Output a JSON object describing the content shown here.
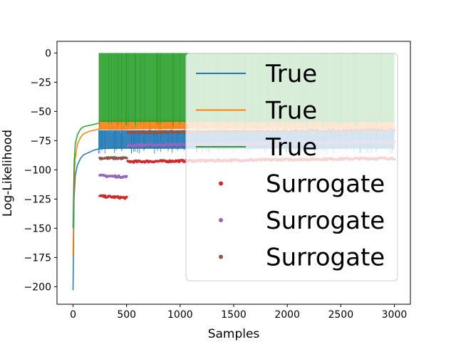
{
  "chart_data": {
    "type": "line",
    "title": "",
    "xlabel": "Samples",
    "ylabel": "Log-Likelihood",
    "xlim": [
      -150,
      3150
    ],
    "ylim": [
      -215,
      10
    ],
    "xticks": [
      0,
      500,
      1000,
      1500,
      2000,
      2500,
      3000
    ],
    "xtick_labels": [
      "0",
      "500",
      "1000",
      "1500",
      "2000",
      "2500",
      "3000"
    ],
    "yticks": [
      0,
      -25,
      -50,
      -75,
      -100,
      -125,
      -150,
      -175,
      -200
    ],
    "ytick_labels": [
      "0",
      "−25",
      "−50",
      "−75",
      "−100",
      "−125",
      "−150",
      "−175",
      "−200"
    ],
    "grid": false,
    "legend": {
      "placement": "upper-right",
      "entries": [
        {
          "label": "True",
          "kind": "line",
          "color": "#1f77b4"
        },
        {
          "label": "True",
          "kind": "line",
          "color": "#ff7f0e"
        },
        {
          "label": "True",
          "kind": "line",
          "color": "#2ca02c"
        },
        {
          "label": "Surrogate",
          "kind": "point",
          "color": "#d62728"
        },
        {
          "label": "Surrogate",
          "kind": "point",
          "color": "#9467bd"
        },
        {
          "label": "Surrogate",
          "kind": "point",
          "color": "#8c564b"
        }
      ]
    },
    "series": [
      {
        "name": "True",
        "kind": "line",
        "color": "#1f77b4",
        "x": [
          0,
          10,
          20,
          40,
          70,
          100,
          150,
          200,
          240,
          241,
          500,
          1000,
          1500,
          2000,
          2500,
          3000
        ],
        "y": [
          -203,
          -125,
          -105,
          -96,
          -90,
          -87,
          -85,
          -83,
          -82,
          -82,
          -81,
          -80,
          -80,
          -80,
          -80,
          -80
        ],
        "spread_from": 240,
        "spread_low": -82,
        "spread_high": -66
      },
      {
        "name": "True",
        "kind": "line",
        "color": "#ff7f0e",
        "x": [
          0,
          10,
          20,
          40,
          70,
          100,
          150,
          200,
          240,
          241,
          500,
          1000,
          1500,
          2000,
          2500,
          3000
        ],
        "y": [
          -174,
          -110,
          -90,
          -78,
          -72,
          -69,
          -67,
          -66,
          -65,
          -65,
          -65,
          -64,
          -64,
          -64,
          -64,
          -64
        ],
        "spread_from": 240,
        "spread_low": -65,
        "spread_high": -57
      },
      {
        "name": "True",
        "kind": "line",
        "color": "#2ca02c",
        "x": [
          0,
          10,
          20,
          40,
          70,
          100,
          150,
          200,
          240
        ],
        "y": [
          -150,
          -95,
          -78,
          -70,
          -65,
          -63,
          -62,
          -61,
          -60
        ],
        "spread_from": 240,
        "spread_low": -59,
        "spread_high": 0
      },
      {
        "name": "Surrogate",
        "kind": "point",
        "color": "#d62728",
        "x": [
          250,
          500,
          510,
          3000
        ],
        "y": [
          -122.5,
          -124,
          -93,
          -90
        ],
        "segments": [
          [
            250,
            500,
            -122.5,
            -124
          ],
          [
            510,
            3000,
            -93,
            -90
          ]
        ]
      },
      {
        "name": "Surrogate",
        "kind": "point",
        "color": "#9467bd",
        "x": [
          250,
          500,
          510,
          3000
        ],
        "y": [
          -105,
          -106,
          -79,
          -76
        ],
        "segments": [
          [
            250,
            500,
            -105,
            -106
          ],
          [
            510,
            3000,
            -79,
            -76
          ]
        ]
      },
      {
        "name": "Surrogate",
        "kind": "point",
        "color": "#8c564b",
        "x": [
          250,
          500,
          510,
          3000
        ],
        "y": [
          -90,
          -90,
          -68,
          -66
        ],
        "segments": [
          [
            250,
            500,
            -90,
            -90
          ],
          [
            510,
            3000,
            -68,
            -66
          ]
        ]
      }
    ]
  }
}
